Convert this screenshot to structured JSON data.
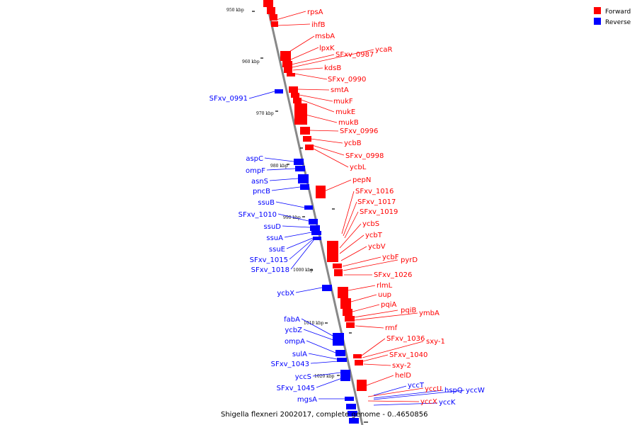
{
  "caption": "Shigella flexneri 2002017, complete genome - 0..4650856",
  "legend": [
    {
      "label": "Forward",
      "color": "#ff0000"
    },
    {
      "label": "Reverse",
      "color": "#0000ff"
    }
  ],
  "colors": {
    "forward": "#ff0000",
    "reverse": "#0000ff",
    "backbone": "#888888"
  },
  "ticks": [
    "950 kbp",
    "960 kbp",
    "970 kbp",
    "980 kbp",
    "990 kbp",
    "1000 kbp",
    "1010 kbp",
    "1020 kbp"
  ],
  "forward_labels": [
    "rpsA",
    "ihfB",
    "msbA",
    "lpxK",
    "SFxv_0987",
    "ycaR",
    "kdsB",
    "SFxv_0990",
    "smtA",
    "mukF",
    "mukE",
    "mukB",
    "SFxv_0996",
    "ycbB",
    "SFxv_0998",
    "ycbL",
    "pepN",
    "SFxv_1016",
    "SFxv_1017",
    "SFxv_1019",
    "ycbS",
    "ycbT",
    "ycbV",
    "ycbF",
    "pyrD",
    "SFxv_1026",
    "rlmL",
    "uup",
    "pqiA",
    "pqiB",
    "ymbA",
    "rmf",
    "SFxv_1036",
    "sxy-1",
    "SFxv_1040",
    "sxy-2",
    "helD",
    "yccU",
    "yccX"
  ],
  "reverse_labels": [
    "SFxv_0991",
    "aspC",
    "ompF",
    "asnS",
    "pncB",
    "ssuB",
    "SFxv_1010",
    "ssuD",
    "ssuA",
    "ssuE",
    "SFxv_1015",
    "SFxv_1018",
    "ycbX",
    "fabA",
    "ycbZ",
    "ompA",
    "sulA",
    "SFxv_1043",
    "yccS",
    "SFxv_1045",
    "mgsA",
    "yccT",
    "hspQ",
    "yccW",
    "yccK"
  ]
}
